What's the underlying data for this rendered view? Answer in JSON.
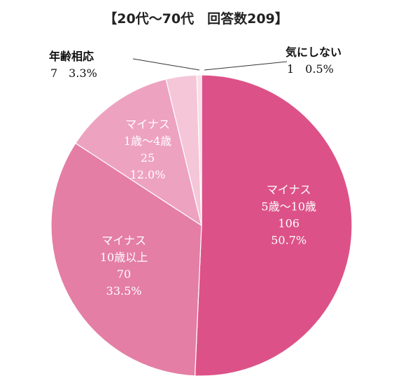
{
  "chart_data": {
    "type": "pie",
    "title": "【20代～70代　回答数209】",
    "slices": [
      {
        "lines": [
          "マイナス",
          "5歳～10歳"
        ],
        "count": "106",
        "percent": "50.7%",
        "value": 50.7,
        "color": "#dc5288"
      },
      {
        "lines": [
          "マイナス",
          "10歳以上"
        ],
        "count": "70",
        "percent": "33.5%",
        "value": 33.5,
        "color": "#e47ea5"
      },
      {
        "lines": [
          "マイナス",
          "1歳～4歳"
        ],
        "count": "25",
        "percent": "12.0%",
        "value": 12.0,
        "color": "#eda2c0"
      },
      {
        "lines": [
          "年齢相応"
        ],
        "count": "7",
        "percent": "3.3%",
        "value": 3.3,
        "color": "#f4c6d8"
      },
      {
        "lines": [
          "気にしない"
        ],
        "count": "1",
        "percent": "0.5%",
        "value": 0.5,
        "color": "#f9dde8"
      }
    ],
    "start": "12 o'clock",
    "direction": "clockwise",
    "legend": "none"
  }
}
